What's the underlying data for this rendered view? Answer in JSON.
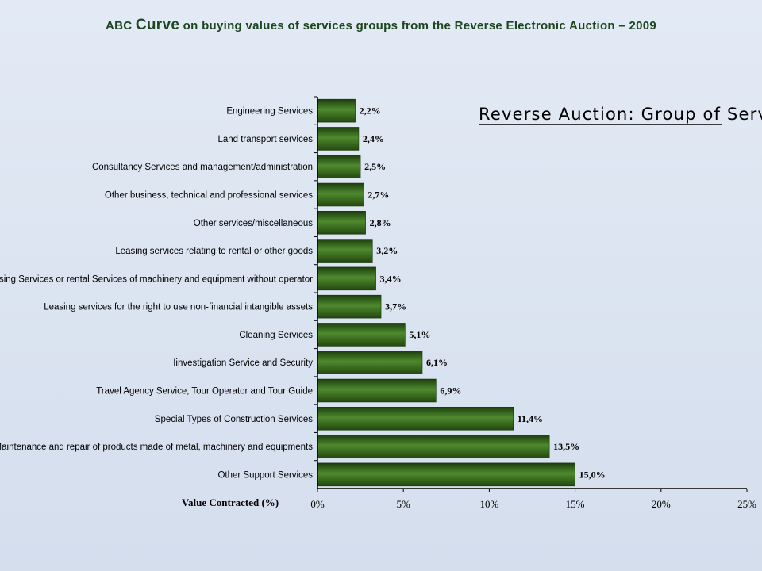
{
  "header": {
    "title_pre": "ABC ",
    "title_big": "Curve",
    "title_post": " on buying values of services groups from the Reverse Electronic Auction – 2009"
  },
  "chart_data": {
    "type": "bar",
    "orientation": "horizontal",
    "title": "Reverse Auction: Group of Services",
    "xlabel": "Value Contracted (%)",
    "ylabel": "",
    "xlim": [
      0,
      25
    ],
    "xticks": [
      0,
      5,
      10,
      15,
      20,
      25
    ],
    "xtick_labels": [
      "0%",
      "5%",
      "10%",
      "15%",
      "20%",
      "25%"
    ],
    "grid": false,
    "bar_color": "#3f7a25",
    "categories": [
      "Engineering Services",
      "Land transport services",
      "Consultancy Services and management/administration",
      "Other business, technical and professional services",
      "Other services/miscellaneous",
      "Leasing services relating to rental or other goods",
      "Leasing Services or rental Services of machinery and  equipment without operator",
      "Leasing services for the right to use non-financial intangible assets",
      "Cleaning Services",
      "Iinvestigation Service and Security",
      "Travel Agency Service, Tour Operator and Tour Guide",
      "Special Types of Construction Services",
      "Maintenance and repair of products made of metal, machinery and equipments",
      "Other Support Services"
    ],
    "values": [
      2.2,
      2.4,
      2.5,
      2.7,
      2.8,
      3.2,
      3.4,
      3.7,
      5.1,
      6.1,
      6.9,
      11.4,
      13.5,
      15.0
    ],
    "value_labels": [
      "2,2%",
      "2,4%",
      "2,5%",
      "2,7%",
      "2,8%",
      "3,2%",
      "3,4%",
      "3,7%",
      "5,1%",
      "6,1%",
      "6,9%",
      "11,4%",
      "13,5%",
      "15,0%"
    ]
  }
}
